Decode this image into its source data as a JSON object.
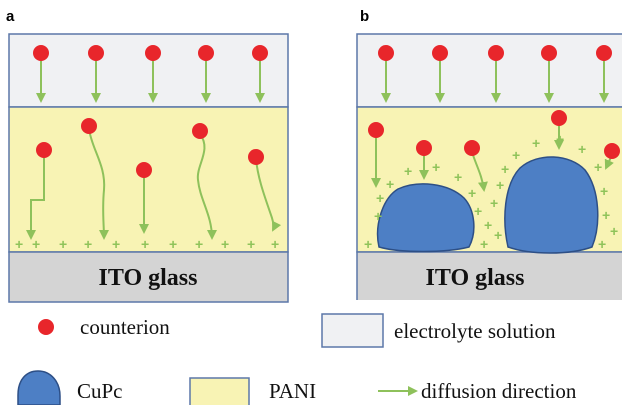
{
  "panels": [
    {
      "letter": "a",
      "substrate_label": "ITO glass"
    },
    {
      "letter": "b",
      "substrate_label": "ITO glass"
    }
  ],
  "legend": {
    "counterion": "counterion",
    "electrolyte": "electrolyte solution",
    "cupc": "CuPc",
    "pani": "PANI",
    "diffusion": "diffusion direction"
  },
  "colors": {
    "electrolyte_fill": "#f0f1f3",
    "pani_fill": "#f8f3b4",
    "ito_fill": "#d4d4d4",
    "frame": "#5b77a8",
    "counterion": "#e8262b",
    "arrow": "#8ec15b",
    "cupc": "#4d7fc5",
    "cupc_stroke": "#2d4f86"
  }
}
